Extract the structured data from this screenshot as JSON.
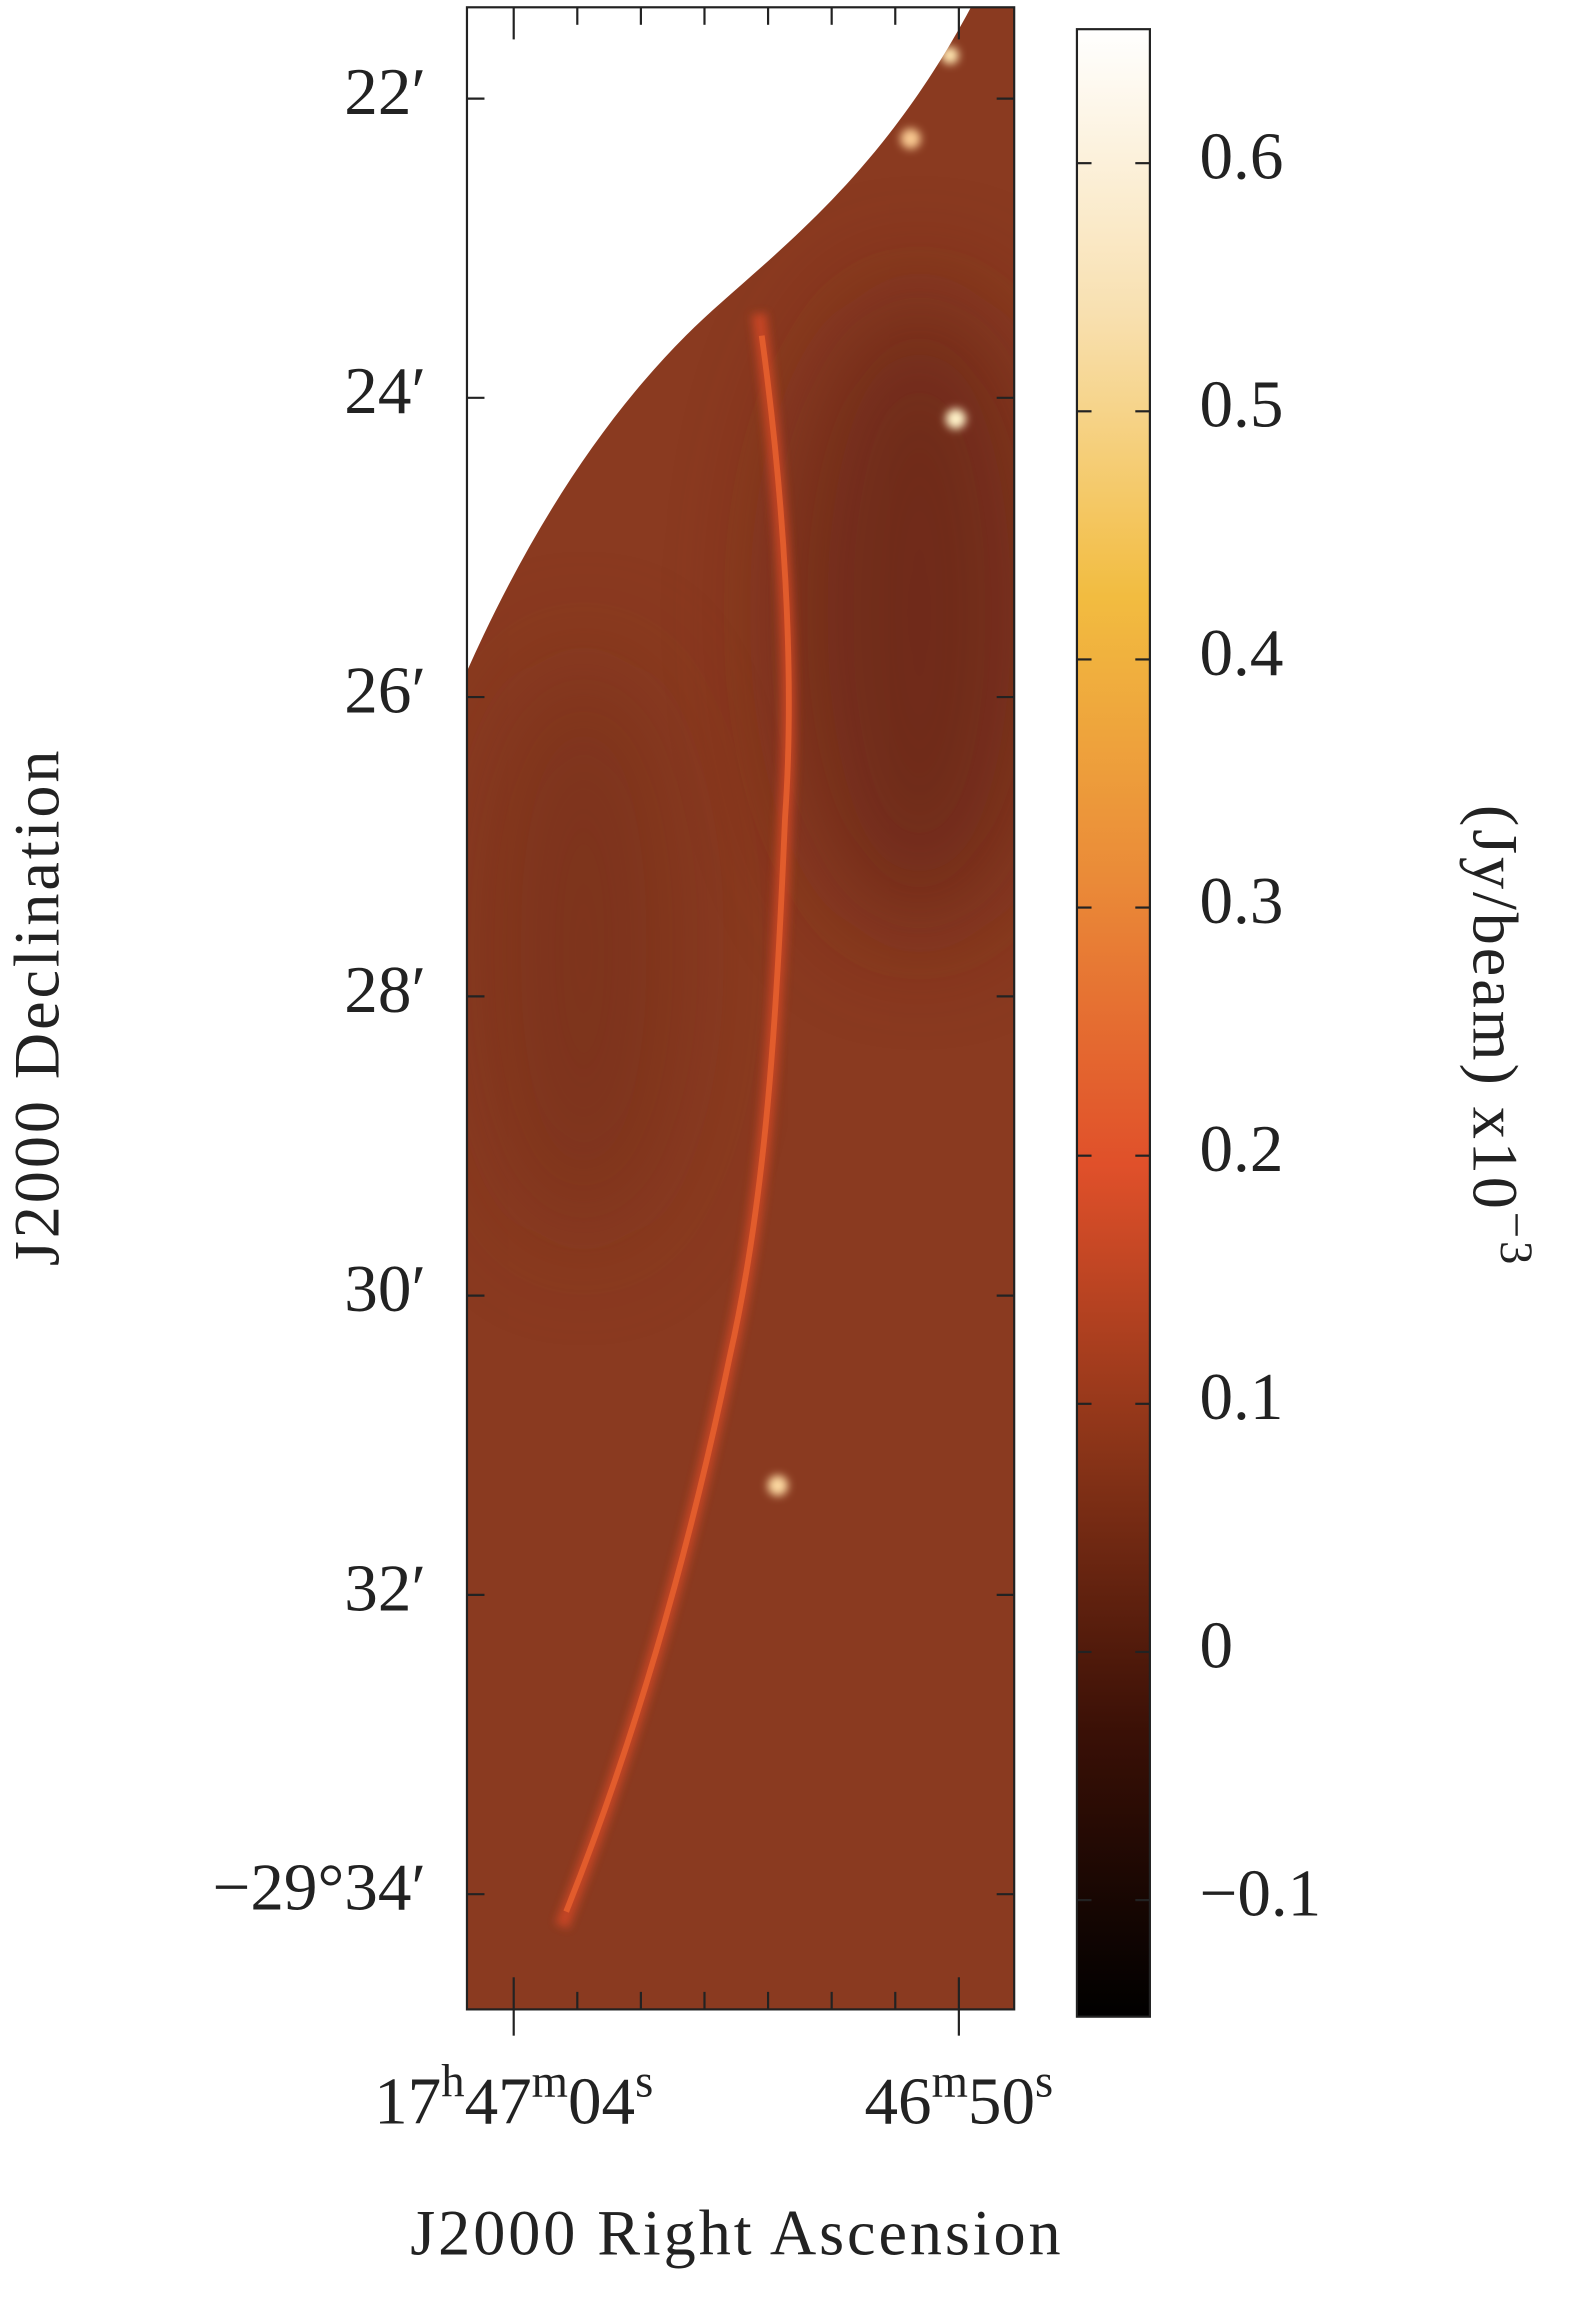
{
  "chart_data": {
    "type": "image",
    "x_label": "J2000 Right Ascension",
    "y_label": "J2000 Declination",
    "xlim": [
      65.47,
      48.26
    ],
    "xticks": [
      {
        "value": 64,
        "label": "17h47m04s"
      },
      {
        "value": 50,
        "label": "46m50s"
      }
    ],
    "xminorticks": [
      62,
      60,
      58,
      56,
      54,
      52
    ],
    "ylim": [
      -29.3565,
      -29.5795
    ],
    "yticks": [
      {
        "value": -29.36667,
        "label": "22′"
      },
      {
        "value": -29.4,
        "label": "24′"
      },
      {
        "value": -29.43333,
        "label": "26′"
      },
      {
        "value": -29.46667,
        "label": "28′"
      },
      {
        "value": -29.5,
        "label": "30′"
      },
      {
        "value": -29.53333,
        "label": "32′"
      },
      {
        "value": -29.56667,
        "label": "−29°34′"
      }
    ],
    "colorbar_label": "(Jy/beam)  x10",
    "colorbar_exponent": "−3",
    "clim": [
      -0.147,
      0.654
    ],
    "cticks": [
      0.6,
      0.5,
      0.4,
      0.3,
      0.2,
      0.1,
      0,
      -0.1
    ],
    "colormap": [
      "#000000",
      "#3a1006",
      "#8a3418",
      "#e0502a",
      "#ea8a38",
      "#f2bc40",
      "#f8e0b0",
      "#ffffff"
    ],
    "background_color": "#8a3a20"
  }
}
